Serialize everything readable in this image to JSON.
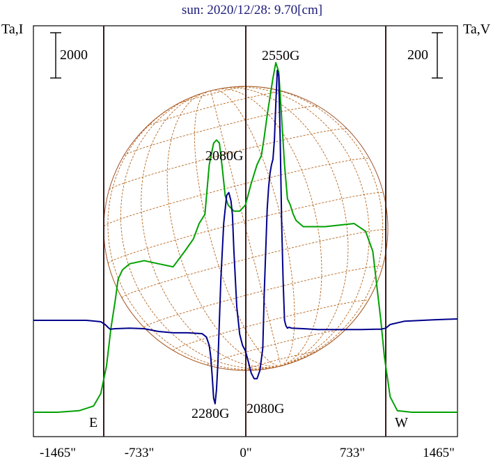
{
  "chart_data": {
    "type": "line",
    "title": "sun: 2020/12/28: 9.70[cm]",
    "left_axis_label": "Ta,I",
    "right_axis_label": "Ta,V",
    "left_scale_bar": "2000",
    "right_scale_bar": "200",
    "x_ticks": [
      "-1465\"",
      "-733\"",
      "0\"",
      "733\"",
      "1465\""
    ],
    "x_tick_values": [
      -1465,
      -733,
      0,
      733,
      1465
    ],
    "xlim": [
      -1465,
      1465
    ],
    "limb_markers": [
      {
        "label": "E",
        "x": -935
      },
      {
        "label": "W",
        "x": 935
      }
    ],
    "center_line_x": 0,
    "annotations": [
      {
        "text": "2550G",
        "x": 240
      },
      {
        "text": "2080G",
        "x": -120
      },
      {
        "text": "2280G",
        "x": -210
      },
      {
        "text": "2080G",
        "x": 150
      }
    ],
    "series": [
      {
        "color": "#00a000",
        "x": [
          -1465,
          -1300,
          -1150,
          -1050,
          -1000,
          -960,
          -930,
          -900,
          -880,
          -850,
          -800,
          -700,
          -600,
          -500,
          -420,
          -360,
          -320,
          -280,
          -250,
          -220,
          -200,
          -180,
          -160,
          -140,
          -120,
          -100,
          -80,
          -60,
          -40,
          -20,
          0,
          40,
          80,
          110,
          130,
          150,
          170,
          190,
          210,
          230,
          250,
          270,
          290,
          310,
          330,
          350,
          400,
          450,
          550,
          650,
          750,
          830,
          880,
          910,
          935,
          960,
          1000,
          1050,
          1150,
          1300,
          1465
        ],
        "y": [
          0,
          0,
          5,
          20,
          60,
          150,
          270,
          360,
          430,
          460,
          480,
          490,
          480,
          470,
          520,
          560,
          610,
          640,
          800,
          870,
          880,
          870,
          790,
          700,
          670,
          660,
          650,
          650,
          650,
          660,
          670,
          740,
          800,
          830,
          890,
          960,
          1020,
          1080,
          1130,
          1100,
          950,
          800,
          690,
          670,
          640,
          620,
          600,
          600,
          600,
          605,
          610,
          585,
          520,
          400,
          300,
          180,
          50,
          5,
          0,
          0,
          0
        ]
      },
      {
        "color": "#00008b",
        "x": [
          -1465,
          -1300,
          -1100,
          -1000,
          -970,
          -950,
          -935,
          -900,
          -800,
          -700,
          -600,
          -500,
          -400,
          -300,
          -270,
          -250,
          -240,
          -230,
          -220,
          -210,
          -200,
          -190,
          -170,
          -150,
          -130,
          -115,
          -100,
          -90,
          -80,
          -60,
          -40,
          -20,
          0,
          20,
          40,
          60,
          80,
          100,
          120,
          130,
          140,
          150,
          160,
          170,
          180,
          190,
          200,
          210,
          220,
          230,
          240,
          250,
          260,
          270,
          280,
          290,
          300,
          320,
          400,
          500,
          600,
          700,
          800,
          900,
          935,
          970,
          1000,
          1100,
          1300,
          1465
        ],
        "y": [
          0,
          0,
          0,
          -5,
          -15,
          -25,
          -32,
          -30,
          -28,
          -30,
          -40,
          -45,
          -45,
          -48,
          -60,
          -90,
          -130,
          -200,
          -280,
          -300,
          -250,
          -150,
          150,
          350,
          450,
          460,
          430,
          380,
          250,
          50,
          -50,
          -90,
          -110,
          -150,
          -190,
          -210,
          -210,
          -180,
          -100,
          100,
          250,
          400,
          480,
          530,
          560,
          580,
          650,
          780,
          900,
          880,
          650,
          350,
          150,
          0,
          -20,
          -28,
          -25,
          -28,
          -30,
          -33,
          -33,
          -33,
          -33,
          -32,
          -32,
          -28,
          -15,
          -3,
          2,
          5
        ]
      }
    ]
  }
}
